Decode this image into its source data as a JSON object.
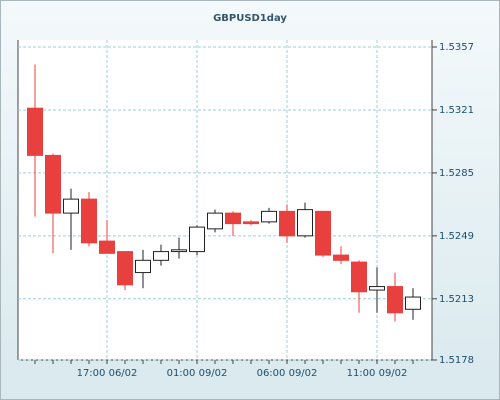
{
  "chart_data": {
    "type": "candlestick",
    "title": "GBPUSD1day",
    "categories": [
      null,
      null,
      null,
      null,
      "17:00 06/02",
      null,
      null,
      null,
      null,
      "01:00 09/02",
      null,
      null,
      null,
      null,
      "06:00 09/02",
      null,
      null,
      null,
      null,
      "11:00 09/02",
      null,
      null
    ],
    "series": [
      {
        "open": [
          1.5322,
          1.5295,
          1.5262,
          1.527,
          1.5246,
          1.524,
          1.5228,
          1.5235,
          1.524,
          1.524,
          1.5253,
          1.5262,
          1.5257,
          1.5257,
          1.5263,
          1.5249,
          1.5263,
          1.5238,
          1.5234,
          1.5218,
          1.522,
          1.5207
        ],
        "high": [
          1.5347,
          1.5296,
          1.5276,
          1.5274,
          1.5258,
          1.524,
          1.5241,
          1.5244,
          1.5248,
          1.5255,
          1.5264,
          1.5263,
          1.5258,
          1.5265,
          1.5267,
          1.5268,
          1.5263,
          1.5243,
          1.5235,
          1.5231,
          1.5228,
          1.5219
        ],
        "low": [
          1.526,
          1.5239,
          1.5241,
          1.5243,
          1.5239,
          1.5218,
          1.5219,
          1.5232,
          1.5236,
          1.5238,
          1.5251,
          1.5249,
          1.5255,
          1.5256,
          1.5245,
          1.5248,
          1.5237,
          1.5233,
          1.5205,
          1.5205,
          1.52,
          1.5201
        ],
        "close": [
          1.5295,
          1.5262,
          1.527,
          1.5245,
          1.5239,
          1.5221,
          1.5235,
          1.524,
          1.5241,
          1.5254,
          1.5262,
          1.5256,
          1.5256,
          1.5263,
          1.5249,
          1.5264,
          1.5238,
          1.5235,
          1.5217,
          1.522,
          1.5205,
          1.5214
        ]
      }
    ],
    "up_color": "#ffffff",
    "down_color": "#e8403f",
    "ylim": [
      1.5178,
      1.5361
    ],
    "yticks": [
      1.5178,
      1.5213,
      1.5249,
      1.5285,
      1.5321,
      1.5357
    ],
    "grid": true
  }
}
